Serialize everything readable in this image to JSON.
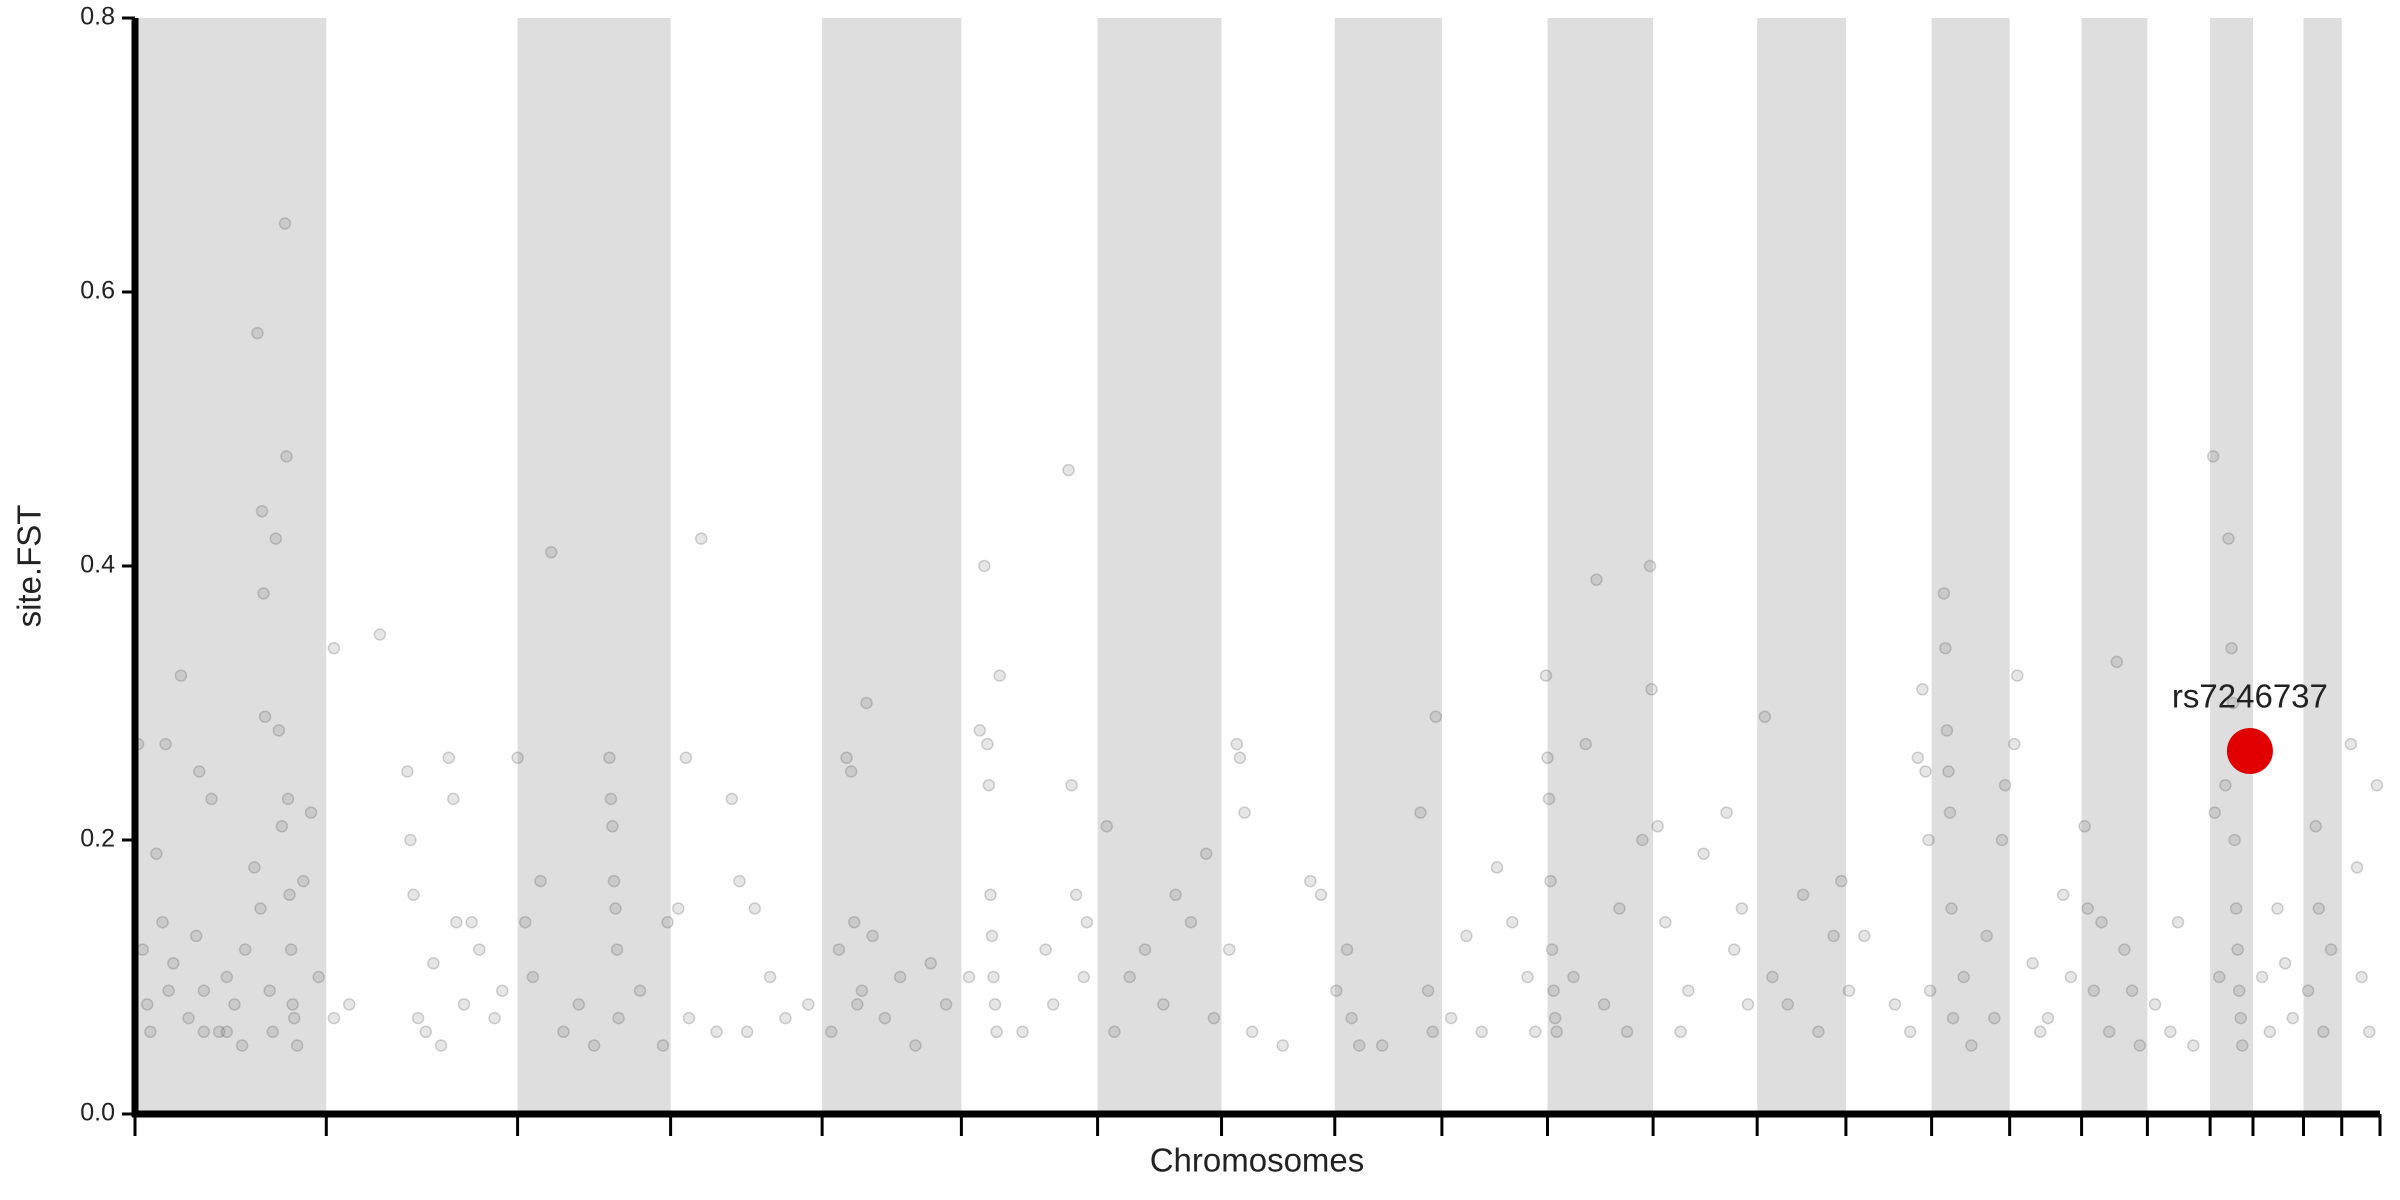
{
  "chart_data": {
    "type": "scatter",
    "xlabel": "Chromosomes",
    "ylabel": "site.FST",
    "xlim": [
      0,
      1467
    ],
    "ylim": [
      0,
      0.8
    ],
    "yticks": [
      {
        "value": 0,
        "label": "0.0"
      },
      0.2,
      0.4,
      0.6,
      {
        "value": 0.8,
        "label": "0.8"
      }
    ],
    "chromosome_bounds": [
      0,
      125,
      250,
      350,
      449,
      540,
      629,
      710,
      784,
      854,
      923,
      992,
      1060,
      1118,
      1174,
      1225,
      1272,
      1315,
      1356,
      1384,
      1417,
      1442,
      1467
    ],
    "band_color": "#dedede",
    "series": [
      {
        "color": "#555555",
        "x": [
          2,
          5,
          8,
          10,
          14,
          18,
          20,
          22,
          25,
          30,
          35,
          40,
          42,
          45,
          50,
          55,
          60,
          65,
          72,
          78,
          80,
          82,
          83,
          84,
          85,
          88,
          90,
          92,
          94,
          96,
          98,
          99,
          100,
          101,
          102,
          103,
          104,
          106,
          110,
          115,
          120,
          45,
          60,
          70,
          130,
          140,
          160,
          178,
          180,
          182,
          185,
          190,
          195,
          205,
          208,
          210,
          215,
          220,
          225,
          235,
          240,
          130,
          200,
          250,
          255,
          260,
          265,
          272,
          280,
          290,
          300,
          310,
          311,
          312,
          313,
          314,
          315,
          316,
          330,
          345,
          348,
          360,
          362,
          370,
          380,
          390,
          395,
          405,
          415,
          425,
          440,
          355,
          400,
          455,
          465,
          468,
          470,
          472,
          475,
          478,
          482,
          490,
          500,
          510,
          520,
          530,
          460,
          545,
          552,
          555,
          557,
          558,
          559,
          560,
          561,
          562,
          563,
          565,
          580,
          595,
          600,
          610,
          612,
          615,
          620,
          622,
          635,
          640,
          650,
          660,
          672,
          680,
          690,
          700,
          705,
          715,
          720,
          722,
          725,
          730,
          750,
          768,
          775,
          785,
          792,
          795,
          800,
          815,
          840,
          845,
          850,
          848,
          860,
          870,
          880,
          890,
          900,
          910,
          915,
          922,
          923,
          924,
          925,
          926,
          927,
          928,
          929,
          940,
          948,
          955,
          960,
          970,
          975,
          985,
          990,
          991,
          995,
          1000,
          1010,
          1015,
          1025,
          1040,
          1045,
          1050,
          1054,
          1065,
          1070,
          1080,
          1090,
          1100,
          1110,
          1115,
          1120,
          1130,
          1150,
          1165,
          1168,
          1170,
          1172,
          1173,
          1160,
          1182,
          1183,
          1184,
          1185,
          1186,
          1187,
          1188,
          1195,
          1200,
          1210,
          1215,
          1220,
          1222,
          1228,
          1230,
          1240,
          1245,
          1250,
          1260,
          1265,
          1274,
          1276,
          1280,
          1285,
          1290,
          1295,
          1300,
          1305,
          1310,
          1320,
          1330,
          1335,
          1345,
          1358,
          1359,
          1362,
          1368,
          1370,
          1371,
          1372,
          1373,
          1374,
          1375,
          1376,
          1377,
          1366,
          1390,
          1395,
          1400,
          1405,
          1410,
          1420,
          1425,
          1427,
          1430,
          1435,
          1448,
          1452,
          1455,
          1460,
          1465
        ],
        "values": [
          0.27,
          0.12,
          0.08,
          0.06,
          0.19,
          0.14,
          0.27,
          0.09,
          0.11,
          0.32,
          0.07,
          0.13,
          0.25,
          0.09,
          0.23,
          0.06,
          0.1,
          0.08,
          0.12,
          0.18,
          0.57,
          0.15,
          0.44,
          0.38,
          0.29,
          0.09,
          0.06,
          0.42,
          0.28,
          0.21,
          0.65,
          0.48,
          0.23,
          0.16,
          0.12,
          0.08,
          0.07,
          0.05,
          0.17,
          0.22,
          0.1,
          0.06,
          0.06,
          0.05,
          0.34,
          0.08,
          0.35,
          0.25,
          0.2,
          0.16,
          0.07,
          0.06,
          0.11,
          0.26,
          0.23,
          0.14,
          0.08,
          0.14,
          0.12,
          0.07,
          0.09,
          0.07,
          0.05,
          0.26,
          0.14,
          0.1,
          0.17,
          0.41,
          0.06,
          0.08,
          0.05,
          0.26,
          0.23,
          0.21,
          0.17,
          0.15,
          0.12,
          0.07,
          0.09,
          0.05,
          0.14,
          0.26,
          0.07,
          0.42,
          0.06,
          0.23,
          0.17,
          0.15,
          0.1,
          0.07,
          0.08,
          0.15,
          0.06,
          0.06,
          0.26,
          0.25,
          0.14,
          0.08,
          0.09,
          0.3,
          0.13,
          0.07,
          0.1,
          0.05,
          0.11,
          0.08,
          0.12,
          0.1,
          0.28,
          0.4,
          0.27,
          0.24,
          0.16,
          0.13,
          0.1,
          0.08,
          0.06,
          0.32,
          0.06,
          0.12,
          0.08,
          0.47,
          0.24,
          0.16,
          0.1,
          0.14,
          0.21,
          0.06,
          0.1,
          0.12,
          0.08,
          0.16,
          0.14,
          0.19,
          0.07,
          0.12,
          0.27,
          0.26,
          0.22,
          0.06,
          0.05,
          0.17,
          0.16,
          0.09,
          0.12,
          0.07,
          0.05,
          0.05,
          0.22,
          0.09,
          0.29,
          0.06,
          0.07,
          0.13,
          0.06,
          0.18,
          0.14,
          0.1,
          0.06,
          0.32,
          0.26,
          0.23,
          0.17,
          0.12,
          0.09,
          0.07,
          0.06,
          0.1,
          0.27,
          0.39,
          0.08,
          0.15,
          0.06,
          0.2,
          0.4,
          0.31,
          0.21,
          0.14,
          0.06,
          0.09,
          0.19,
          0.22,
          0.12,
          0.15,
          0.08,
          0.29,
          0.1,
          0.08,
          0.16,
          0.06,
          0.13,
          0.17,
          0.09,
          0.13,
          0.08,
          0.26,
          0.31,
          0.25,
          0.2,
          0.09,
          0.06,
          0.38,
          0.34,
          0.28,
          0.25,
          0.22,
          0.15,
          0.07,
          0.1,
          0.05,
          0.13,
          0.07,
          0.2,
          0.24,
          0.27,
          0.32,
          0.11,
          0.06,
          0.07,
          0.16,
          0.1,
          0.21,
          0.15,
          0.09,
          0.14,
          0.06,
          0.33,
          0.12,
          0.09,
          0.05,
          0.08,
          0.06,
          0.14,
          0.05,
          0.48,
          0.22,
          0.1,
          0.42,
          0.34,
          0.3,
          0.2,
          0.15,
          0.12,
          0.09,
          0.07,
          0.05,
          0.24,
          0.1,
          0.06,
          0.15,
          0.11,
          0.07,
          0.09,
          0.21,
          0.15,
          0.06,
          0.12,
          0.27,
          0.18,
          0.1,
          0.06,
          0.24
        ]
      },
      {
        "color": "#e00000",
        "highlight": true,
        "x": [
          1382
        ],
        "values": [
          0.265
        ],
        "point_labels": [
          "rs7246737"
        ]
      }
    ]
  }
}
